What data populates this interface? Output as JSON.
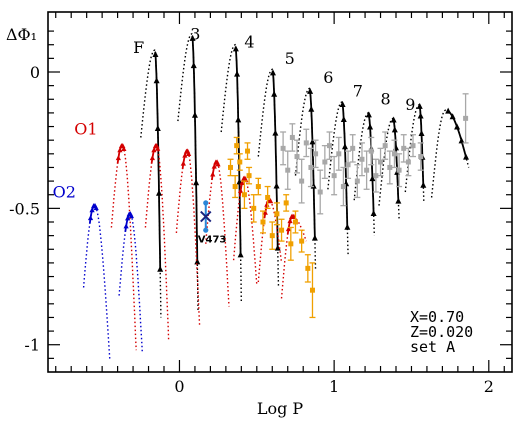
{
  "chart_data": {
    "type": "line",
    "xlabel": "Log P",
    "ylabel": "ΔΦ₁",
    "xlim": [
      -0.85,
      2.15
    ],
    "ylim": [
      -1.1,
      0.22
    ],
    "x_ticks": [
      0,
      1,
      2
    ],
    "y_ticks": [
      0,
      -0.5,
      -1
    ],
    "x_tick_labels": [
      "0",
      "1",
      "2"
    ],
    "y_tick_labels": [
      "0",
      "-0.5",
      "-1"
    ],
    "colors": {
      "F": "#000000",
      "O1": "#d40000",
      "O2": "#0000cc",
      "observed_orange": "#f0a000",
      "observed_gray": "#a8a8a8",
      "V473": "#2a86d8"
    },
    "mode_labels": [
      {
        "text": "F",
        "x": -0.3,
        "y": 0.07,
        "color": "#000000"
      },
      {
        "text": "O1",
        "x": -0.68,
        "y": -0.23,
        "color": "#d40000"
      },
      {
        "text": "O2",
        "x": -0.82,
        "y": -0.46,
        "color": "#0000cc"
      }
    ],
    "curve_labels": [
      {
        "text": "3",
        "x": 0.07,
        "y": 0.12
      },
      {
        "text": "4",
        "x": 0.42,
        "y": 0.09
      },
      {
        "text": "5",
        "x": 0.68,
        "y": 0.03
      },
      {
        "text": "6",
        "x": 0.93,
        "y": -0.04
      },
      {
        "text": "7",
        "x": 1.12,
        "y": -0.09
      },
      {
        "text": "8",
        "x": 1.3,
        "y": -0.12
      },
      {
        "text": "9",
        "x": 1.46,
        "y": -0.14
      }
    ],
    "model_lines": [
      "X=0.70",
      "Z=0.020",
      "set A"
    ],
    "star": {
      "label": "V473",
      "x": 0.17,
      "y": -0.53,
      "err": 0.05
    },
    "series": [
      {
        "name": "F",
        "mode": "F",
        "peak_x": -0.16,
        "peak_y": 0.08,
        "end_x": -0.12,
        "end_y": -0.9,
        "solid_from": 0.55
      },
      {
        "name": "F",
        "mode": "F",
        "peak_x": 0.08,
        "peak_y": 0.14,
        "end_x": 0.12,
        "end_y": -0.88,
        "solid_from": 0.55
      },
      {
        "name": "F",
        "mode": "F",
        "peak_x": 0.36,
        "peak_y": 0.1,
        "end_x": 0.4,
        "end_y": -0.84,
        "solid_from": 0.45
      },
      {
        "name": "F",
        "mode": "F",
        "peak_x": 0.6,
        "peak_y": 0.01,
        "end_x": 0.64,
        "end_y": -0.79,
        "solid_from": 0.4
      },
      {
        "name": "F",
        "mode": "F",
        "peak_x": 0.84,
        "peak_y": -0.06,
        "end_x": 0.88,
        "end_y": -0.73,
        "solid_from": 0.4
      },
      {
        "name": "F",
        "mode": "F",
        "peak_x": 1.05,
        "peak_y": -0.11,
        "end_x": 1.09,
        "end_y": -0.67,
        "solid_from": 0.35
      },
      {
        "name": "F",
        "mode": "F",
        "peak_x": 1.22,
        "peak_y": -0.15,
        "end_x": 1.26,
        "end_y": -0.6,
        "solid_from": 0.35
      },
      {
        "name": "F",
        "mode": "F",
        "peak_x": 1.38,
        "peak_y": -0.17,
        "end_x": 1.42,
        "end_y": -0.54,
        "solid_from": 0.35
      },
      {
        "name": "F",
        "mode": "F",
        "peak_x": 1.55,
        "peak_y": -0.12,
        "end_x": 1.58,
        "end_y": -0.48,
        "solid_from": 0.3
      },
      {
        "name": "F",
        "mode": "F",
        "peak_x": 1.72,
        "peak_y": -0.14,
        "end_x": 1.87,
        "end_y": -0.35,
        "solid_from": 0.3
      },
      {
        "name": "O1",
        "mode": "O1",
        "peak_x": -0.37,
        "peak_y": -0.27,
        "end_x": -0.28,
        "end_y": -1.02,
        "solid_from": 0.0
      },
      {
        "name": "O1",
        "mode": "O1",
        "peak_x": -0.15,
        "peak_y": -0.27,
        "end_x": -0.07,
        "end_y": -0.98,
        "solid_from": 0.0
      },
      {
        "name": "O1",
        "mode": "O1",
        "peak_x": 0.05,
        "peak_y": -0.29,
        "end_x": 0.13,
        "end_y": -0.93,
        "solid_from": 0.0
      },
      {
        "name": "O1",
        "mode": "O1",
        "peak_x": 0.24,
        "peak_y": -0.33,
        "end_x": 0.32,
        "end_y": -0.86,
        "solid_from": 0.0
      },
      {
        "name": "O1",
        "mode": "O1",
        "peak_x": 0.42,
        "peak_y": -0.39,
        "end_x": 0.5,
        "end_y": -0.78,
        "solid_from": 0.0
      },
      {
        "name": "O1",
        "mode": "O1",
        "peak_x": 0.58,
        "peak_y": -0.47,
        "end_x": 0.66,
        "end_y": -0.7,
        "solid_from": 0.0
      },
      {
        "name": "O1",
        "mode": "O1",
        "peak_x": 0.73,
        "peak_y": -0.53,
        "end_x": 0.82,
        "end_y": -0.62,
        "solid_from": 0.0
      },
      {
        "name": "O2",
        "mode": "O2",
        "peak_x": -0.55,
        "peak_y": -0.49,
        "end_x": -0.45,
        "end_y": -1.06,
        "solid_from": 0.0
      },
      {
        "name": "O2",
        "mode": "O2",
        "peak_x": -0.32,
        "peak_y": -0.52,
        "end_x": -0.24,
        "end_y": -1.03,
        "solid_from": 0.0
      }
    ],
    "observed_orange": [
      [
        0.33,
        -0.35,
        0.03
      ],
      [
        0.36,
        -0.42,
        0.04
      ],
      [
        0.39,
        -0.33,
        0.03
      ],
      [
        0.42,
        -0.45,
        0.05
      ],
      [
        0.45,
        -0.38,
        0.03
      ],
      [
        0.48,
        -0.5,
        0.05
      ],
      [
        0.51,
        -0.42,
        0.03
      ],
      [
        0.54,
        -0.55,
        0.04
      ],
      [
        0.57,
        -0.46,
        0.04
      ],
      [
        0.6,
        -0.6,
        0.05
      ],
      [
        0.63,
        -0.52,
        0.04
      ],
      [
        0.66,
        -0.58,
        0.04
      ],
      [
        0.69,
        -0.48,
        0.03
      ],
      [
        0.72,
        -0.63,
        0.06
      ],
      [
        0.75,
        -0.55,
        0.04
      ],
      [
        0.79,
        -0.62,
        0.04
      ],
      [
        0.83,
        -0.72,
        0.05
      ],
      [
        0.86,
        -0.8,
        0.1
      ],
      [
        0.44,
        -0.29,
        0.03
      ],
      [
        0.37,
        -0.27,
        0.03
      ]
    ],
    "observed_gray": [
      [
        0.67,
        -0.28,
        0.06
      ],
      [
        0.7,
        -0.36,
        0.07
      ],
      [
        0.73,
        -0.24,
        0.05
      ],
      [
        0.76,
        -0.31,
        0.06
      ],
      [
        0.79,
        -0.4,
        0.08
      ],
      [
        0.82,
        -0.26,
        0.05
      ],
      [
        0.85,
        -0.35,
        0.07
      ],
      [
        0.88,
        -0.3,
        0.05
      ],
      [
        0.91,
        -0.44,
        0.08
      ],
      [
        0.94,
        -0.33,
        0.06
      ],
      [
        0.97,
        -0.27,
        0.05
      ],
      [
        1.0,
        -0.38,
        0.07
      ],
      [
        1.03,
        -0.3,
        0.06
      ],
      [
        1.06,
        -0.42,
        0.07
      ],
      [
        1.09,
        -0.34,
        0.05
      ],
      [
        1.12,
        -0.28,
        0.05
      ],
      [
        1.15,
        -0.4,
        0.06
      ],
      [
        1.18,
        -0.32,
        0.06
      ],
      [
        1.21,
        -0.36,
        0.07
      ],
      [
        1.24,
        -0.29,
        0.05
      ],
      [
        1.27,
        -0.38,
        0.06
      ],
      [
        1.3,
        -0.33,
        0.05
      ],
      [
        1.33,
        -0.27,
        0.05
      ],
      [
        1.36,
        -0.35,
        0.06
      ],
      [
        1.39,
        -0.3,
        0.05
      ],
      [
        1.42,
        -0.36,
        0.06
      ],
      [
        1.45,
        -0.28,
        0.05
      ],
      [
        1.48,
        -0.33,
        0.05
      ],
      [
        1.51,
        -0.27,
        0.04
      ],
      [
        1.56,
        -0.31,
        0.05
      ],
      [
        1.85,
        -0.17,
        0.09
      ]
    ]
  }
}
